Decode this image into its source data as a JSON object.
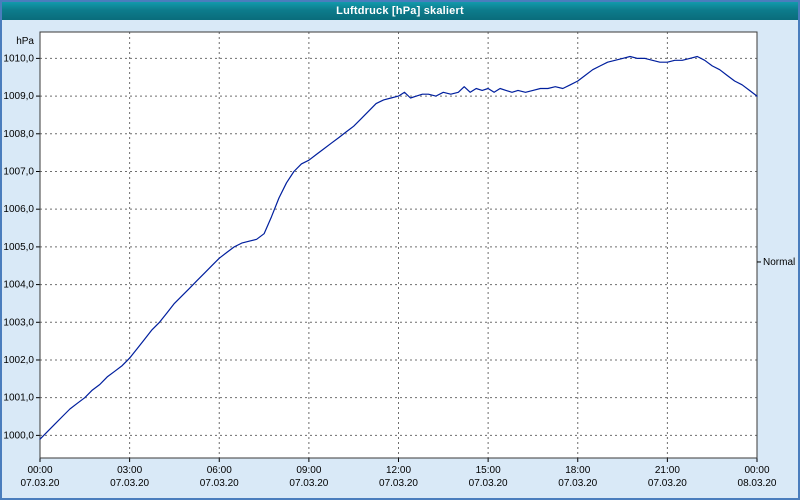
{
  "window": {
    "title": "Luftdruck [hPa] skaliert"
  },
  "chart_data": {
    "type": "line",
    "title": "Luftdruck [hPa] skaliert",
    "xlabel": "",
    "ylabel": "hPa",
    "ylim": [
      999.4,
      1010.7
    ],
    "xlim_hours": [
      0,
      24
    ],
    "grid": "dashed",
    "legend_position": "none",
    "y_ticks": [
      {
        "value": 1000,
        "label": "1000,0"
      },
      {
        "value": 1001,
        "label": "1001,0"
      },
      {
        "value": 1002,
        "label": "1002,0"
      },
      {
        "value": 1003,
        "label": "1003,0"
      },
      {
        "value": 1004,
        "label": "1004,0"
      },
      {
        "value": 1005,
        "label": "1005,0"
      },
      {
        "value": 1006,
        "label": "1006,0"
      },
      {
        "value": 1007,
        "label": "1007,0"
      },
      {
        "value": 1008,
        "label": "1008,0"
      },
      {
        "value": 1009,
        "label": "1009,0"
      },
      {
        "value": 1010,
        "label": "1010,0"
      }
    ],
    "x_ticks": [
      {
        "hour": 0,
        "time": "00:00",
        "date": "07.03.20"
      },
      {
        "hour": 3,
        "time": "03:00",
        "date": "07.03.20"
      },
      {
        "hour": 6,
        "time": "06:00",
        "date": "07.03.20"
      },
      {
        "hour": 9,
        "time": "09:00",
        "date": "07.03.20"
      },
      {
        "hour": 12,
        "time": "12:00",
        "date": "07.03.20"
      },
      {
        "hour": 15,
        "time": "15:00",
        "date": "07.03.20"
      },
      {
        "hour": 18,
        "time": "18:00",
        "date": "07.03.20"
      },
      {
        "hour": 21,
        "time": "21:00",
        "date": "07.03.20"
      },
      {
        "hour": 24,
        "time": "00:00",
        "date": "08.03.20"
      }
    ],
    "normal_marker": {
      "label": "Normal",
      "value": 1004.6
    },
    "series": [
      {
        "name": "Luftdruck [hPa] skaliert",
        "color": "#001f9e",
        "points": [
          [
            0,
            999.9
          ],
          [
            0.25,
            1000.1
          ],
          [
            0.5,
            1000.3
          ],
          [
            0.75,
            1000.5
          ],
          [
            1,
            1000.7
          ],
          [
            1.25,
            1000.85
          ],
          [
            1.5,
            1001.0
          ],
          [
            1.75,
            1001.2
          ],
          [
            2,
            1001.35
          ],
          [
            2.25,
            1001.55
          ],
          [
            2.5,
            1001.7
          ],
          [
            2.75,
            1001.85
          ],
          [
            3,
            1002.05
          ],
          [
            3.25,
            1002.3
          ],
          [
            3.5,
            1002.55
          ],
          [
            3.75,
            1002.8
          ],
          [
            4,
            1003.0
          ],
          [
            4.25,
            1003.25
          ],
          [
            4.5,
            1003.5
          ],
          [
            4.75,
            1003.7
          ],
          [
            5,
            1003.9
          ],
          [
            5.25,
            1004.1
          ],
          [
            5.5,
            1004.3
          ],
          [
            5.75,
            1004.5
          ],
          [
            6,
            1004.7
          ],
          [
            6.25,
            1004.85
          ],
          [
            6.5,
            1005.0
          ],
          [
            6.75,
            1005.1
          ],
          [
            7,
            1005.15
          ],
          [
            7.25,
            1005.2
          ],
          [
            7.5,
            1005.35
          ],
          [
            7.75,
            1005.8
          ],
          [
            8,
            1006.3
          ],
          [
            8.25,
            1006.7
          ],
          [
            8.5,
            1007.0
          ],
          [
            8.75,
            1007.2
          ],
          [
            9,
            1007.3
          ],
          [
            9.25,
            1007.45
          ],
          [
            9.5,
            1007.6
          ],
          [
            9.75,
            1007.75
          ],
          [
            10,
            1007.9
          ],
          [
            10.25,
            1008.05
          ],
          [
            10.5,
            1008.2
          ],
          [
            10.75,
            1008.4
          ],
          [
            11,
            1008.6
          ],
          [
            11.25,
            1008.8
          ],
          [
            11.5,
            1008.9
          ],
          [
            11.75,
            1008.95
          ],
          [
            12,
            1009.0
          ],
          [
            12.2,
            1009.1
          ],
          [
            12.4,
            1008.95
          ],
          [
            12.6,
            1009.0
          ],
          [
            12.8,
            1009.05
          ],
          [
            13,
            1009.05
          ],
          [
            13.25,
            1009.0
          ],
          [
            13.5,
            1009.1
          ],
          [
            13.75,
            1009.05
          ],
          [
            14,
            1009.1
          ],
          [
            14.2,
            1009.25
          ],
          [
            14.4,
            1009.1
          ],
          [
            14.6,
            1009.2
          ],
          [
            14.8,
            1009.15
          ],
          [
            15,
            1009.2
          ],
          [
            15.2,
            1009.1
          ],
          [
            15.4,
            1009.2
          ],
          [
            15.6,
            1009.15
          ],
          [
            15.8,
            1009.1
          ],
          [
            16,
            1009.15
          ],
          [
            16.25,
            1009.1
          ],
          [
            16.5,
            1009.15
          ],
          [
            16.75,
            1009.2
          ],
          [
            17,
            1009.2
          ],
          [
            17.25,
            1009.25
          ],
          [
            17.5,
            1009.2
          ],
          [
            17.75,
            1009.3
          ],
          [
            18,
            1009.4
          ],
          [
            18.25,
            1009.55
          ],
          [
            18.5,
            1009.7
          ],
          [
            18.75,
            1009.8
          ],
          [
            19,
            1009.9
          ],
          [
            19.25,
            1009.95
          ],
          [
            19.5,
            1010.0
          ],
          [
            19.75,
            1010.05
          ],
          [
            20,
            1010.0
          ],
          [
            20.25,
            1010.0
          ],
          [
            20.5,
            1009.95
          ],
          [
            20.75,
            1009.9
          ],
          [
            21,
            1009.9
          ],
          [
            21.25,
            1009.95
          ],
          [
            21.5,
            1009.95
          ],
          [
            21.75,
            1010.0
          ],
          [
            22,
            1010.05
          ],
          [
            22.25,
            1009.95
          ],
          [
            22.5,
            1009.8
          ],
          [
            22.75,
            1009.7
          ],
          [
            23,
            1009.55
          ],
          [
            23.25,
            1009.4
          ],
          [
            23.5,
            1009.3
          ],
          [
            23.75,
            1009.15
          ],
          [
            24,
            1009.0
          ]
        ]
      }
    ]
  }
}
